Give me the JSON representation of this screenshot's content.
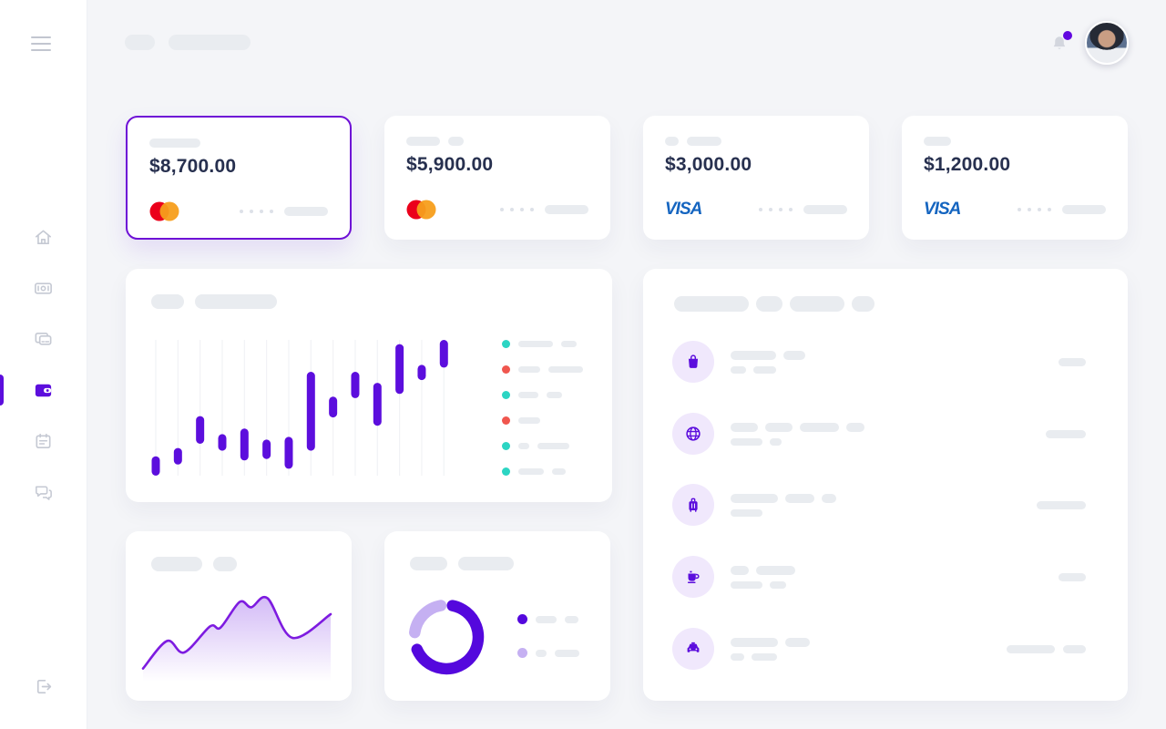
{
  "colors": {
    "accent": "#5c0edd",
    "accent_light": "#c5b0f2",
    "teal": "#2cd5c3",
    "red": "#f0564e",
    "visa_blue": "#1565c0",
    "mastercard_red": "#eb001b",
    "mastercard_orange": "#f79e1b",
    "badge_purple": "#6207e0",
    "skeleton": "#e9ecf0"
  },
  "header": {
    "skeleton_pills": [
      33,
      90
    ],
    "bell_has_notification": true
  },
  "sidebar": {
    "items": [
      {
        "name": "home",
        "active": false
      },
      {
        "name": "money",
        "active": false
      },
      {
        "name": "cards",
        "active": false
      },
      {
        "name": "wallet",
        "active": true
      },
      {
        "name": "calendar",
        "active": false
      },
      {
        "name": "chat",
        "active": false
      }
    ],
    "footer_item": {
      "name": "logout"
    }
  },
  "cards": [
    {
      "amount": "$8,700.00",
      "network": "mastercard",
      "network_label": "",
      "selected": true,
      "top_pills": [
        56
      ],
      "masked_dots": 4,
      "number_pill": 48
    },
    {
      "amount": "$5,900.00",
      "network": "mastercard",
      "network_label": "",
      "selected": false,
      "top_pills": [
        37,
        17
      ],
      "masked_dots": 4,
      "number_pill": 48
    },
    {
      "amount": "$3,000.00",
      "network": "visa",
      "network_label": "VISA",
      "selected": false,
      "top_pills": [
        15,
        38
      ],
      "masked_dots": 4,
      "number_pill": 48
    },
    {
      "amount": "$1,200.00",
      "network": "visa",
      "network_label": "VISA",
      "selected": false,
      "top_pills": [
        30
      ],
      "masked_dots": 4,
      "number_pill": 48
    }
  ],
  "chart_panel": {
    "title_pills": [
      36,
      90
    ],
    "legend": [
      {
        "dot": "#2cd5c3",
        "pills": [
          38,
          17
        ]
      },
      {
        "dot": "#f0564e",
        "pills": [
          24,
          38
        ]
      },
      {
        "dot": "#2cd5c3",
        "pills": [
          22,
          17
        ]
      },
      {
        "dot": "#f0564e",
        "pills": [
          24
        ]
      },
      {
        "dot": "#2cd5c3",
        "pills": [
          12,
          35
        ]
      },
      {
        "dot": "#2cd5c3",
        "pills": [
          28,
          15
        ]
      }
    ]
  },
  "transactions_panel": {
    "header_pills": [
      82,
      29,
      60,
      25
    ],
    "rows": [
      {
        "icon": "shopping-bag",
        "title_pills": [
          50,
          24
        ],
        "sub_pills": [
          17,
          25
        ],
        "amount_pills": [
          30
        ]
      },
      {
        "icon": "globe",
        "title_pills": [
          30,
          30,
          43,
          20
        ],
        "sub_pills": [
          35,
          13
        ],
        "amount_pills": [
          44
        ]
      },
      {
        "icon": "luggage",
        "title_pills": [
          52,
          32,
          16
        ],
        "sub_pills": [
          35
        ],
        "amount_pills": [
          54
        ]
      },
      {
        "icon": "coffee",
        "title_pills": [
          20,
          43
        ],
        "sub_pills": [
          35,
          18
        ],
        "amount_pills": [
          30
        ]
      },
      {
        "icon": "taxi",
        "title_pills": [
          52,
          27
        ],
        "sub_pills": [
          15,
          28
        ],
        "amount_pills": [
          53,
          25
        ]
      }
    ]
  },
  "area_panel": {
    "title_pills": [
      56,
      26
    ]
  },
  "donut_panel": {
    "title_pills": [
      41,
      61
    ],
    "legend": [
      {
        "dot": "#5408dd",
        "pills": [
          23,
          15
        ]
      },
      {
        "dot": "#c5b0f2",
        "pills": [
          12,
          27
        ]
      }
    ]
  },
  "chart_data": [
    {
      "id": "balance-candlestick",
      "type": "candlestick",
      "title": "",
      "xlabel": "",
      "ylabel": "",
      "grid": "vertical-lines",
      "ylim": [
        0,
        100
      ],
      "bar_color": "#5c0edd",
      "series": [
        {
          "name": "daily-range",
          "bars": [
            {
              "low": 2,
              "high": 16
            },
            {
              "low": 10,
              "high": 22
            },
            {
              "low": 25,
              "high": 45
            },
            {
              "low": 20,
              "high": 32
            },
            {
              "low": 13,
              "high": 36
            },
            {
              "low": 14,
              "high": 28
            },
            {
              "low": 7,
              "high": 30
            },
            {
              "low": 20,
              "high": 77
            },
            {
              "low": 44,
              "high": 59
            },
            {
              "low": 58,
              "high": 77
            },
            {
              "low": 38,
              "high": 69
            },
            {
              "low": 61,
              "high": 97
            },
            {
              "low": 71,
              "high": 82
            },
            {
              "low": 80,
              "high": 100
            }
          ]
        }
      ]
    },
    {
      "id": "trend-area",
      "type": "area",
      "title": "",
      "xlabel": "",
      "ylabel": "",
      "line_color": "#7d1be0",
      "fill": "purple-gradient-fade",
      "xlim": [
        0,
        100
      ],
      "ylim": [
        0,
        100
      ],
      "x": [
        0,
        12.8,
        21.9,
        35.7,
        41.3,
        51.5,
        57.7,
        66.3,
        79.6,
        100
      ],
      "y": [
        4,
        40,
        25,
        59,
        57.5,
        91,
        84,
        96,
        44,
        75
      ]
    },
    {
      "id": "spending-donut",
      "type": "donut",
      "title": "",
      "segments": [
        {
          "name": "primary",
          "color": "#5408dd",
          "start_deg": -79,
          "end_deg": 157
        },
        {
          "name": "secondary",
          "color": "#c5b0f2",
          "start_deg": -172,
          "end_deg": -100
        }
      ]
    }
  ]
}
